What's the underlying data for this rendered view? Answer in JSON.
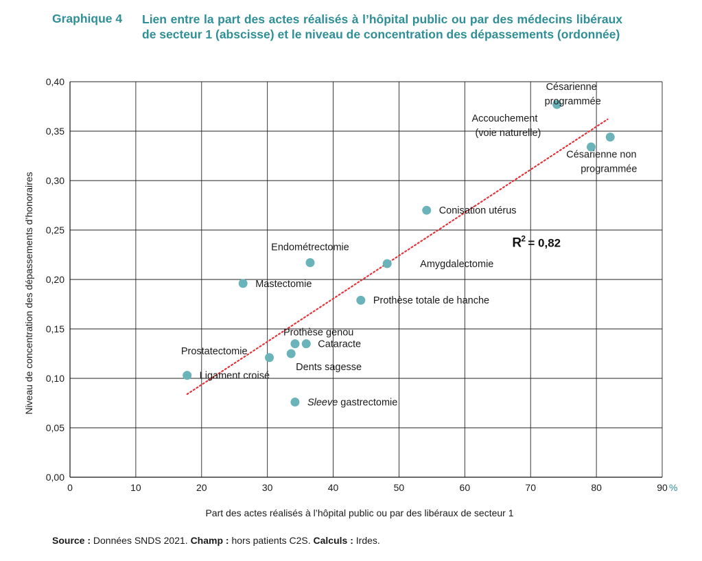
{
  "header": {
    "label": "Graphique 4",
    "title": "Lien entre la part des actes réalisés à l’hôpital public ou par des médecins libéraux de secteur 1 (abscisse) et le niveau de concentration des dépassements (ordonnée)"
  },
  "footer": {
    "source_label": "Source :",
    "source_text": "Données SNDS 2021.",
    "champ_label": "Champ :",
    "champ_text": "hors patients C2S.",
    "calculs_label": "Calculs :",
    "calculs_text": "Irdes."
  },
  "chart_data": {
    "type": "scatter",
    "title": "Lien entre la part des actes réalisés à l’hôpital public ou par des médecins libéraux de secteur 1 (abscisse) et le niveau de concentration des dépassements (ordonnée)",
    "xlabel": "Part des actes réalisés à l’hôpital public ou par des libéraux de secteur 1",
    "x_unit": "%",
    "ylabel": "Niveau de concentration des dépassements d’honoraires",
    "xlim": [
      0,
      90
    ],
    "ylim": [
      0,
      0.4
    ],
    "x_ticks": [
      "0",
      "10",
      "20",
      "30",
      "40",
      "50",
      "60",
      "70",
      "80",
      "90"
    ],
    "y_ticks": [
      "0,00",
      "0,05",
      "0,10",
      "0,15",
      "0,20",
      "0,25",
      "0,30",
      "0,35",
      "0,40"
    ],
    "grid": true,
    "marker_color": "#6ab3b8",
    "trend_color": "#e2343a",
    "points": [
      {
        "name": "Césarienne programmée",
        "lines": [
          "Césarienne",
          "programmée"
        ],
        "x": 74.0,
        "y": 0.377
      },
      {
        "name": "Accouchement (voie naturelle)",
        "lines": [
          "Accouchement",
          "(voie naturelle)"
        ],
        "x": 79.2,
        "y": 0.334
      },
      {
        "name": "Césarienne non programmée",
        "lines": [
          "Césarienne non",
          "programmée"
        ],
        "x": 82.1,
        "y": 0.344
      },
      {
        "name": "Conisation utérus",
        "lines": [
          "Conisation utérus"
        ],
        "x": 54.2,
        "y": 0.27
      },
      {
        "name": "Endométrectomie",
        "lines": [
          "Endométrectomie"
        ],
        "x": 36.5,
        "y": 0.217
      },
      {
        "name": "Amygdalectomie",
        "lines": [
          "Amygdalectomie"
        ],
        "x": 48.2,
        "y": 0.216
      },
      {
        "name": "Mastectomie",
        "lines": [
          "Mastectomie"
        ],
        "x": 26.3,
        "y": 0.196
      },
      {
        "name": "Prothèse totale de hanche",
        "lines": [
          "Prothèse totale de hanche"
        ],
        "x": 44.2,
        "y": 0.179
      },
      {
        "name": "Prothèse genou",
        "lines": [
          "Prothèse genou"
        ],
        "x": 34.2,
        "y": 0.135
      },
      {
        "name": "Cataracte",
        "lines": [
          "Cataracte"
        ],
        "x": 35.9,
        "y": 0.135
      },
      {
        "name": "Dents sagesse",
        "lines": [
          "Dents sagesse"
        ],
        "x": 33.6,
        "y": 0.125
      },
      {
        "name": "Prostatectomie",
        "lines": [
          "Prostatectomie"
        ],
        "x": 30.3,
        "y": 0.121
      },
      {
        "name": "Ligament croisé",
        "lines": [
          "Ligament croisé"
        ],
        "x": 17.8,
        "y": 0.103
      },
      {
        "name": "Sleeve gastrectomie",
        "lines": [
          "Sleeve",
          " gastrectomie"
        ],
        "italic_first": true,
        "x": 34.2,
        "y": 0.076
      }
    ],
    "trendline": {
      "x": [
        17.8,
        81.7
      ],
      "y": [
        0.084,
        0.362
      ]
    },
    "annotation": {
      "r2_label": "R",
      "r2_exponent": "2",
      "r2_value": "= 0,82",
      "x": 67.2,
      "y": 0.233
    }
  }
}
